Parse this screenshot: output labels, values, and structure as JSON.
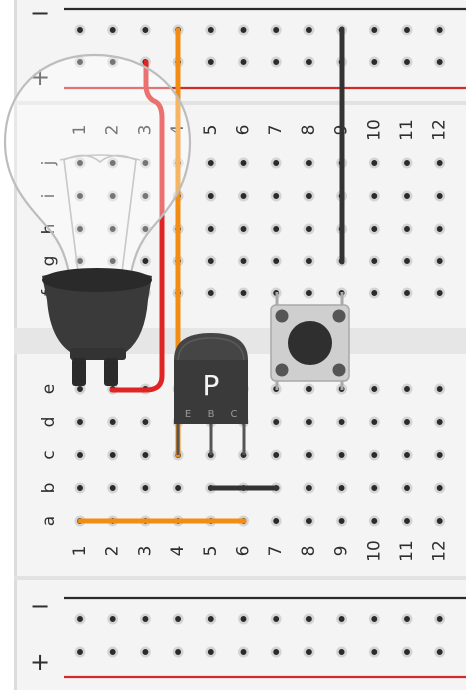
{
  "rails": {
    "top": {
      "minus_label": "−",
      "plus_label": "+"
    },
    "bottom": {
      "minus_label": "−",
      "plus_label": "+"
    }
  },
  "columns_top": [
    "1",
    "2",
    "3",
    "4",
    "5",
    "6",
    "7",
    "8",
    "9",
    "10",
    "11",
    "12"
  ],
  "columns_bottom": [
    "1",
    "2",
    "3",
    "4",
    "5",
    "6",
    "7",
    "8",
    "9",
    "10",
    "11",
    "12"
  ],
  "rows_upper": [
    "j",
    "i",
    "h",
    "g",
    "f"
  ],
  "rows_lower": [
    "e",
    "d",
    "c",
    "b",
    "a"
  ],
  "transistor": {
    "label": "P",
    "pins": [
      "E",
      "B",
      "C"
    ]
  },
  "colors": {
    "board": "#f2f2f2",
    "rail_red": "#cf2b2b",
    "rail_black": "#2a2a2a",
    "wire_orange": "#f28c13",
    "wire_red": "#e02424",
    "wire_black": "#333333",
    "component_dark": "#3a3a3a"
  }
}
